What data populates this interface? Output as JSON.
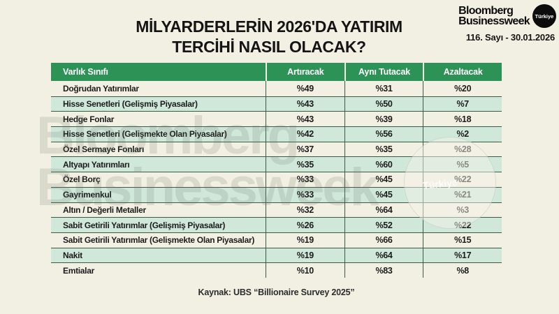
{
  "header": {
    "title_line1": "MİLYARDERLERİN 2026'DA YATIRIM",
    "title_line2": "TERCİHİ NASIL OLACAK?",
    "brand_line1": "Bloomberg",
    "brand_line2": "Businessweek",
    "brand_badge": "Türkiye",
    "issue": "116. Sayı - 30.01.2026"
  },
  "table": {
    "columns": [
      "Varlık Sınıfı",
      "Artıracak",
      "Aynı Tutacak",
      "Azaltacak"
    ],
    "rows": [
      {
        "label": "Doğrudan Yatırımlar",
        "increase": "%49",
        "same": "%31",
        "decrease": "%20"
      },
      {
        "label": "Hisse Senetleri (Gelişmiş Piyasalar)",
        "increase": "%43",
        "same": "%50",
        "decrease": "%7"
      },
      {
        "label": "Hedge Fonlar",
        "increase": "%43",
        "same": "%39",
        "decrease": "%18"
      },
      {
        "label": "Hisse Senetleri (Gelişmekte Olan Piyasalar)",
        "increase": "%42",
        "same": "%56",
        "decrease": "%2"
      },
      {
        "label": "Özel Sermaye Fonları",
        "increase": "%37",
        "same": "%35",
        "decrease": "%28"
      },
      {
        "label": "Altyapı Yatırımları",
        "increase": "%35",
        "same": "%60",
        "decrease": "%5"
      },
      {
        "label": "Özel Borç",
        "increase": "%33",
        "same": "%45",
        "decrease": "%22"
      },
      {
        "label": "Gayrimenkul",
        "increase": "%33",
        "same": "%45",
        "decrease": "%21"
      },
      {
        "label": "Altın / Değerli Metaller",
        "increase": "%32",
        "same": "%64",
        "decrease": "%3"
      },
      {
        "label": "Sabit Getirili Yatırımlar (Gelişmiş Piyasalar)",
        "increase": "%26",
        "same": "%52",
        "decrease": "%22"
      },
      {
        "label": "Sabit Getirili Yatırımlar (Gelişmekte Olan Piyasalar)",
        "increase": "%19",
        "same": "%66",
        "decrease": "%15"
      },
      {
        "label": "Nakit",
        "increase": "%19",
        "same": "%64",
        "decrease": "%17"
      },
      {
        "label": "Emtialar",
        "increase": "%10",
        "same": "%83",
        "decrease": "%8"
      }
    ]
  },
  "footer": {
    "source": "Kaynak: UBS “Billionaire Survey 2025”"
  },
  "watermark": {
    "line1": "Bloomberg",
    "line2": "Businessweek",
    "badge": "Türkiye"
  },
  "colors": {
    "background": "#f2f0e3",
    "header_green": "#2d9255",
    "row_green": "#cfe8da",
    "row_cream": "#f2f0e3",
    "grid_line": "#3a5a46",
    "badge_black": "#0c0c0c"
  },
  "chart_data": {
    "type": "table",
    "title": "MİLYARDERLERİN 2026'DA YATIRIM TERCİHİ NASIL OLACAK?",
    "columns": [
      "Varlık Sınıfı",
      "Artıracak",
      "Aynı Tutacak",
      "Azaltacak"
    ],
    "categories": [
      "Doğrudan Yatırımlar",
      "Hisse Senetleri (Gelişmiş Piyasalar)",
      "Hedge Fonlar",
      "Hisse Senetleri (Gelişmekte Olan Piyasalar)",
      "Özel Sermaye Fonları",
      "Altyapı Yatırımları",
      "Özel Borç",
      "Gayrimenkul",
      "Altın / Değerli Metaller",
      "Sabit Getirili Yatırımlar (Gelişmiş Piyasalar)",
      "Sabit Getirili Yatırımlar (Gelişmekte Olan Piyasalar)",
      "Nakit",
      "Emtialar"
    ],
    "series": [
      {
        "name": "Artıracak",
        "values": [
          49,
          43,
          43,
          42,
          37,
          35,
          33,
          33,
          32,
          26,
          19,
          19,
          10
        ]
      },
      {
        "name": "Aynı Tutacak",
        "values": [
          31,
          50,
          39,
          56,
          35,
          60,
          45,
          45,
          64,
          52,
          66,
          64,
          83
        ]
      },
      {
        "name": "Azaltacak",
        "values": [
          20,
          7,
          18,
          2,
          28,
          5,
          22,
          21,
          3,
          22,
          15,
          17,
          8
        ]
      }
    ],
    "unit": "%",
    "source": "Kaynak: UBS “Billionaire Survey 2025”"
  }
}
